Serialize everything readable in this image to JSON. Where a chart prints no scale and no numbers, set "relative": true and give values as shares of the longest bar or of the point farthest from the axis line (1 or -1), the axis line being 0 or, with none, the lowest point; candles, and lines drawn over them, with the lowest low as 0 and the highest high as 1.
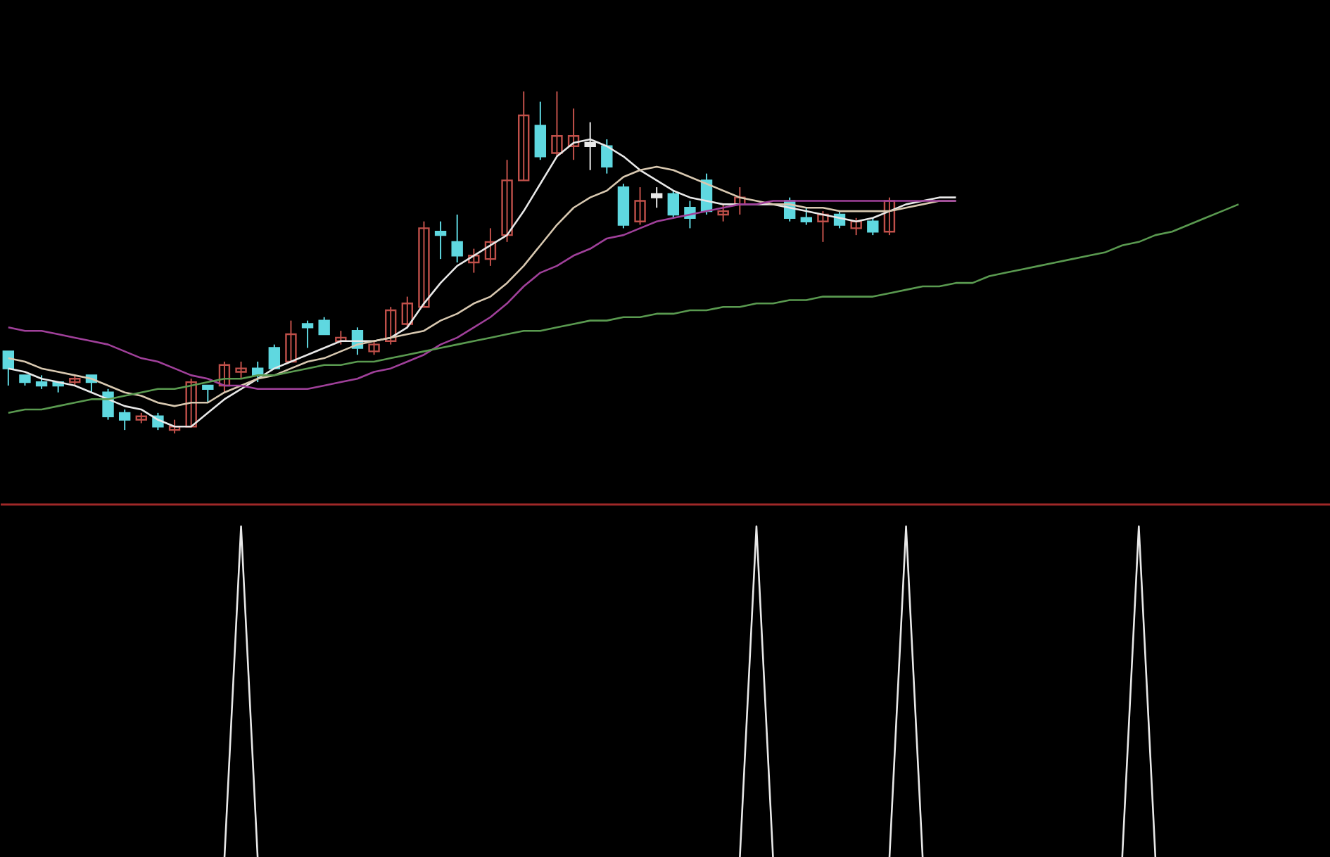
{
  "chart_data": [
    {
      "type": "candlestick",
      "relative": true,
      "categories": [
        null,
        null,
        null,
        null,
        null,
        null,
        null,
        null,
        null,
        null,
        null,
        null,
        null,
        null,
        null,
        null,
        null,
        null,
        null,
        null,
        null,
        null,
        null,
        null,
        null,
        null,
        null,
        null,
        null,
        null,
        null,
        null,
        null,
        null,
        null,
        null,
        null,
        null,
        null,
        null,
        null,
        null,
        null,
        null,
        null,
        null,
        null,
        null,
        null,
        null,
        null,
        null,
        null,
        null,
        null,
        null,
        null,
        null,
        null,
        null,
        null,
        null,
        null,
        null,
        null,
        null,
        null,
        null,
        null,
        null,
        null,
        null,
        null,
        null,
        null,
        null,
        null,
        null,
        null,
        null
      ],
      "ohlc": [
        [
          0.24,
          0.24,
          0.14,
          0.19
        ],
        [
          0.17,
          0.17,
          0.14,
          0.15
        ],
        [
          0.15,
          0.17,
          0.13,
          0.14
        ],
        [
          0.15,
          0.15,
          0.12,
          0.14
        ],
        [
          0.15,
          0.17,
          0.14,
          0.16
        ],
        [
          0.17,
          0.17,
          0.12,
          0.15
        ],
        [
          0.12,
          0.13,
          0.04,
          0.05
        ],
        [
          0.06,
          0.07,
          0.01,
          0.04
        ],
        [
          0.04,
          0.06,
          0.03,
          0.05
        ],
        [
          0.05,
          0.06,
          0.01,
          0.02
        ],
        [
          0.01,
          0.04,
          0,
          0.02
        ],
        [
          0.02,
          0.16,
          0.02,
          0.15
        ],
        [
          0.14,
          0.14,
          0.09,
          0.13
        ],
        [
          0.14,
          0.21,
          0.12,
          0.2
        ],
        [
          0.18,
          0.21,
          0.16,
          0.19
        ],
        [
          0.19,
          0.21,
          0.15,
          0.17
        ],
        [
          0.25,
          0.26,
          0.19,
          0.19
        ],
        [
          0.21,
          0.33,
          0.21,
          0.29
        ],
        [
          0.32,
          0.33,
          0.25,
          0.31
        ],
        [
          0.33,
          0.34,
          0.29,
          0.29
        ],
        [
          0.27,
          0.3,
          0.26,
          0.28
        ],
        [
          0.3,
          0.31,
          0.23,
          0.25
        ],
        [
          0.24,
          0.27,
          0.23,
          0.26
        ],
        [
          0.27,
          0.37,
          0.26,
          0.36
        ],
        [
          0.32,
          0.4,
          0.31,
          0.38
        ],
        [
          0.37,
          0.62,
          0.37,
          0.6
        ],
        [
          0.59,
          0.62,
          0.51,
          0.58
        ],
        [
          0.56,
          0.64,
          0.5,
          0.52
        ],
        [
          0.5,
          0.54,
          0.47,
          0.52
        ],
        [
          0.51,
          0.6,
          0.49,
          0.56
        ],
        [
          0.58,
          0.8,
          0.56,
          0.74
        ],
        [
          0.74,
          1,
          0.74,
          0.93
        ],
        [
          0.9,
          0.97,
          0.8,
          0.81
        ],
        [
          0.82,
          1,
          0.81,
          0.87
        ],
        [
          0.84,
          0.95,
          0.8,
          0.87
        ],
        [
          0.85,
          0.91,
          0.77,
          0.84
        ],
        [
          0.84,
          0.86,
          0.76,
          0.78
        ],
        [
          0.72,
          0.73,
          0.6,
          0.61
        ],
        [
          0.62,
          0.72,
          0.61,
          0.68
        ],
        [
          0.7,
          0.72,
          0.66,
          0.69
        ],
        [
          0.7,
          0.71,
          0.63,
          0.64
        ],
        [
          0.66,
          0.68,
          0.6,
          0.63
        ],
        [
          0.74,
          0.76,
          0.64,
          0.65
        ],
        [
          0.64,
          0.67,
          0.62,
          0.65
        ],
        [
          0.67,
          0.72,
          0.64,
          0.69
        ],
        null,
        null,
        [
          0.68,
          0.69,
          0.62,
          0.63
        ],
        [
          0.63,
          0.66,
          0.61,
          0.62
        ],
        [
          0.62,
          0.65,
          0.56,
          0.64
        ],
        [
          0.64,
          0.65,
          0.6,
          0.61
        ],
        [
          0.6,
          0.63,
          0.58,
          0.62
        ],
        [
          0.62,
          0.63,
          0.58,
          0.59
        ],
        [
          0.59,
          0.69,
          0.58,
          0.68
        ],
        null,
        null,
        null,
        null,
        null,
        null,
        null,
        null,
        null,
        null,
        null,
        null,
        null,
        null,
        null,
        null,
        null,
        null,
        null,
        null,
        null,
        null,
        null,
        null,
        null,
        null
      ],
      "colors": [
        "#5fd8e0",
        "#5fd8e0",
        "#5fd8e0",
        "#5fd8e0",
        "#c0504a",
        "#5fd8e0",
        "#5fd8e0",
        "#5fd8e0",
        "#c0504a",
        "#5fd8e0",
        "#c0504a",
        "#c0504a",
        "#5fd8e0",
        "#c0504a",
        "#c0504a",
        "#5fd8e0",
        "#5fd8e0",
        "#c0504a",
        "#5fd8e0",
        "#5fd8e0",
        "#c0504a",
        "#5fd8e0",
        "#c0504a",
        "#c0504a",
        "#c0504a",
        "#c0504a",
        "#5fd8e0",
        "#5fd8e0",
        "#c0504a",
        "#c0504a",
        "#c0504a",
        "#c0504a",
        "#5fd8e0",
        "#c0504a",
        "#c0504a",
        "#e8e8e8",
        "#5fd8e0",
        "#5fd8e0",
        "#c0504a",
        "#e8e8e8",
        "#5fd8e0",
        "#5fd8e0",
        "#5fd8e0",
        "#c0504a",
        "#c0504a",
        null,
        null,
        "#5fd8e0",
        "#5fd8e0",
        "#c0504a",
        "#5fd8e0",
        "#c0504a",
        "#5fd8e0",
        "#c0504a",
        null,
        null,
        null,
        null,
        null,
        null,
        null,
        null,
        null,
        null,
        null,
        null,
        null,
        null,
        null,
        null,
        null,
        null,
        null,
        null,
        null,
        null,
        null,
        null,
        null,
        null
      ],
      "series": [
        {
          "type": "line",
          "color": "#e8e8e8",
          "values": [
            0.19,
            0.18,
            0.16,
            0.15,
            0.14,
            0.12,
            0.1,
            0.08,
            0.07,
            0.04,
            0.02,
            0.02,
            0.06,
            0.1,
            0.13,
            0.16,
            0.19,
            0.21,
            0.23,
            0.25,
            0.27,
            0.27,
            0.27,
            0.28,
            0.31,
            0.38,
            0.44,
            0.49,
            0.52,
            0.55,
            0.58,
            0.65,
            0.73,
            0.81,
            0.85,
            0.86,
            0.84,
            0.81,
            0.77,
            0.74,
            0.71,
            0.69,
            0.68,
            0.67,
            0.67,
            0.67,
            0.67,
            0.66,
            0.65,
            0.64,
            0.63,
            0.62,
            0.63,
            0.65,
            0.67,
            0.68,
            0.69,
            0.69,
            null,
            null,
            null,
            null,
            null,
            null,
            null,
            null,
            null,
            null,
            null,
            null,
            null,
            null,
            null,
            null,
            null,
            null,
            null,
            null,
            null,
            null
          ]
        },
        {
          "type": "line",
          "color": "#d8c8b0",
          "values": [
            0.22,
            0.21,
            0.19,
            0.18,
            0.17,
            0.16,
            0.14,
            0.12,
            0.11,
            0.09,
            0.08,
            0.09,
            0.09,
            0.12,
            0.14,
            0.16,
            0.17,
            0.19,
            0.21,
            0.22,
            0.24,
            0.26,
            0.27,
            0.28,
            0.29,
            0.3,
            0.33,
            0.35,
            0.38,
            0.4,
            0.44,
            0.49,
            0.55,
            0.61,
            0.66,
            0.69,
            0.71,
            0.75,
            0.77,
            0.78,
            0.77,
            0.75,
            0.73,
            0.71,
            0.69,
            0.68,
            0.67,
            0.67,
            0.66,
            0.66,
            0.65,
            0.65,
            0.65,
            0.65,
            0.66,
            0.67,
            0.68,
            0.68,
            null,
            null,
            null,
            null,
            null,
            null,
            null,
            null,
            null,
            null,
            null,
            null,
            null,
            null,
            null,
            null,
            null,
            null,
            null,
            null,
            null,
            null
          ]
        },
        {
          "type": "line",
          "color": "#a0409a",
          "values": [
            0.31,
            0.3,
            0.3,
            0.29,
            0.28,
            0.27,
            0.26,
            0.24,
            0.22,
            0.21,
            0.19,
            0.17,
            0.16,
            0.14,
            0.14,
            0.13,
            0.13,
            0.13,
            0.13,
            0.14,
            0.15,
            0.16,
            0.18,
            0.19,
            0.21,
            0.23,
            0.26,
            0.28,
            0.31,
            0.34,
            0.38,
            0.43,
            0.47,
            0.49,
            0.52,
            0.54,
            0.57,
            0.58,
            0.6,
            0.62,
            0.63,
            0.64,
            0.65,
            0.66,
            0.67,
            0.67,
            0.68,
            0.68,
            0.68,
            0.68,
            0.68,
            0.68,
            0.68,
            0.68,
            0.68,
            0.68,
            0.68,
            0.68,
            null,
            null,
            null,
            null,
            null,
            null,
            null,
            null,
            null,
            null,
            null,
            null,
            null,
            null,
            null,
            null,
            null,
            null,
            null,
            null,
            null,
            null
          ]
        },
        {
          "type": "line",
          "color": "#5a9a50",
          "values": [
            0.06,
            0.07,
            0.07,
            0.08,
            0.09,
            0.1,
            0.1,
            0.11,
            0.12,
            0.13,
            0.13,
            0.14,
            0.15,
            0.16,
            0.16,
            0.17,
            0.17,
            0.18,
            0.19,
            0.2,
            0.2,
            0.21,
            0.21,
            0.22,
            0.23,
            0.24,
            0.25,
            0.26,
            0.27,
            0.28,
            0.29,
            0.3,
            0.3,
            0.31,
            0.32,
            0.33,
            0.33,
            0.34,
            0.34,
            0.35,
            0.35,
            0.36,
            0.36,
            0.37,
            0.37,
            0.38,
            0.38,
            0.39,
            0.39,
            0.4,
            0.4,
            0.4,
            0.4,
            0.41,
            0.42,
            0.43,
            0.43,
            0.44,
            0.44,
            0.46,
            0.47,
            0.48,
            0.49,
            0.5,
            0.51,
            0.52,
            0.53,
            0.55,
            0.56,
            0.58,
            0.59,
            0.61,
            0.63,
            0.65,
            0.67,
            null,
            null,
            null,
            null,
            null
          ]
        }
      ]
    },
    {
      "type": "line",
      "relative": true,
      "categories": [
        null,
        null,
        null,
        null,
        null,
        null,
        null,
        null,
        null,
        null,
        null,
        null,
        null,
        null,
        null,
        null,
        null,
        null,
        null,
        null,
        null,
        null,
        null,
        null,
        null,
        null,
        null,
        null,
        null,
        null,
        null,
        null,
        null,
        null,
        null,
        null,
        null,
        null,
        null,
        null,
        null,
        null,
        null,
        null,
        null,
        null,
        null,
        null,
        null,
        null,
        null,
        null,
        null,
        null,
        null,
        null,
        null,
        null,
        null,
        null,
        null,
        null,
        null,
        null,
        null,
        null,
        null,
        null,
        null,
        null,
        null,
        null,
        null,
        null,
        null,
        null,
        null,
        null,
        null,
        null
      ],
      "series": [
        {
          "color": "#e8e8e8",
          "values": [
            null,
            null,
            null,
            null,
            null,
            null,
            null,
            null,
            null,
            null,
            null,
            null,
            null,
            0,
            1,
            0,
            null,
            null,
            null,
            null,
            null,
            null,
            null,
            null,
            null,
            null,
            null,
            null,
            null,
            null,
            null,
            null,
            null,
            null,
            null,
            null,
            null,
            null,
            null,
            null,
            null,
            null,
            null,
            null,
            0,
            1,
            0,
            null,
            null,
            null,
            null,
            null,
            null,
            0,
            1,
            0,
            null,
            null,
            null,
            null,
            null,
            null,
            null,
            null,
            null,
            null,
            null,
            0,
            1,
            0,
            null,
            null,
            null,
            null,
            null,
            null,
            null,
            null,
            null,
            null
          ]
        }
      ]
    }
  ]
}
